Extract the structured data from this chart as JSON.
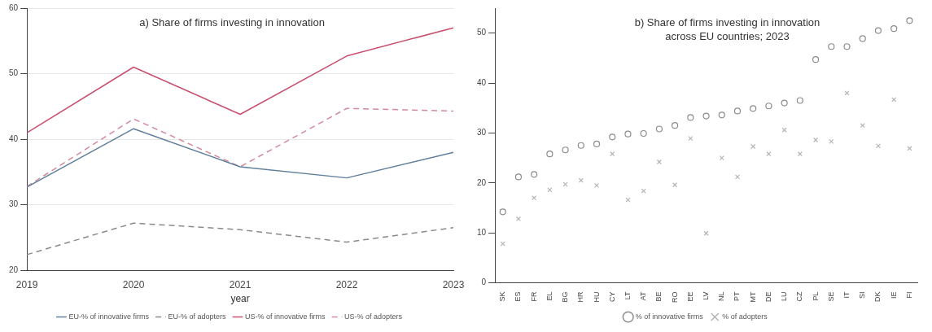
{
  "chart_data": [
    {
      "type": "line",
      "title": "a) Share of firms investing in innovation",
      "xlabel": "year",
      "categories": [
        "2019",
        "2020",
        "2021",
        "2022",
        "2023"
      ],
      "series": [
        {
          "name": "EU-% of innovative firms",
          "color": "#5f7f9c",
          "line_style": "solid",
          "values": [
            32.7,
            41.6,
            35.8,
            34.1,
            38.0
          ]
        },
        {
          "name": "EU-% of adopters",
          "color": "#8a8a8a",
          "line_style": "dashed",
          "values": [
            22.4,
            27.2,
            26.2,
            24.3,
            26.5
          ]
        },
        {
          "name": "US-% of innovative firms",
          "color": "#c8506e",
          "line_style": "solid",
          "values": [
            41.0,
            51.0,
            43.8,
            52.7,
            57.0
          ]
        },
        {
          "name": "US-% of adopters",
          "color": "#d48a9e",
          "line_style": "dashed",
          "values": [
            32.8,
            43.1,
            35.8,
            44.7,
            44.3
          ]
        }
      ],
      "ylim": [
        20,
        60
      ],
      "yticks": [
        20,
        30,
        40,
        50,
        60
      ],
      "grid": "y",
      "legend": "bottom",
      "marker": "none"
    },
    {
      "type": "scatter",
      "title": "b) Share of firms investing in innovation across EU countries; 2023",
      "categories": [
        "SK",
        "ES",
        "FR",
        "EL",
        "BG",
        "HR",
        "HU",
        "CY",
        "LT",
        "AT",
        "BE",
        "RO",
        "EE",
        "LV",
        "NL",
        "PT",
        "MT",
        "DE",
        "LU",
        "CZ",
        "PL",
        "SE",
        "IT",
        "SI",
        "DK",
        "IE",
        "FI"
      ],
      "series": [
        {
          "name": "% of innovative firms",
          "color": "#8c8c8c",
          "marker": "circle",
          "values": [
            14.2,
            21.2,
            21.7,
            25.8,
            26.6,
            27.5,
            27.8,
            29.2,
            29.8,
            29.9,
            30.8,
            31.5,
            33.1,
            33.4,
            33.6,
            34.4,
            34.9,
            35.4,
            36.0,
            36.5,
            44.7,
            47.3,
            47.3,
            48.9,
            50.5,
            50.9,
            52.5
          ]
        },
        {
          "name": "% of adopters",
          "color": "#b4b4b4",
          "marker": "cross",
          "values": [
            7.8,
            12.8,
            17.0,
            18.6,
            19.7,
            20.5,
            19.5,
            25.8,
            16.6,
            18.4,
            24.2,
            19.6,
            28.9,
            9.9,
            25.0,
            21.2,
            27.3,
            25.8,
            30.6,
            25.8,
            28.6,
            28.3,
            38.0,
            31.5,
            27.4,
            36.7,
            26.9
          ]
        }
      ],
      "ylim": [
        0,
        55
      ],
      "yticks": [
        0,
        10,
        20,
        30,
        40,
        50
      ],
      "grid": false,
      "legend": "bottom"
    }
  ]
}
